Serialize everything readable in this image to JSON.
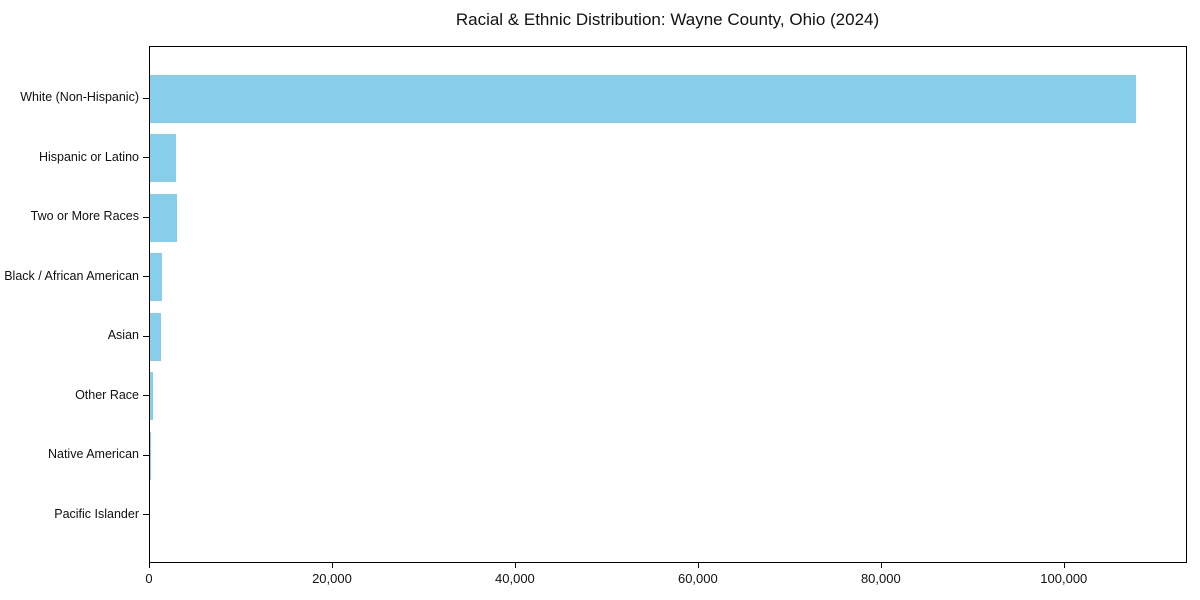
{
  "chart_data": {
    "type": "bar",
    "orientation": "horizontal",
    "title": "Racial & Ethnic Distribution: Wayne County, Ohio (2024)",
    "categories": [
      "White (Non-Hispanic)",
      "Hispanic or Latino",
      "Two or More Races",
      "Black / African American",
      "Asian",
      "Other Race",
      "Native American",
      "Pacific Islander"
    ],
    "values": [
      107800,
      2850,
      2950,
      1300,
      1200,
      350,
      120,
      40
    ],
    "xlabel": "",
    "ylabel": "",
    "xlim": [
      0,
      113250
    ],
    "x_ticks": [
      0,
      20000,
      40000,
      60000,
      80000,
      100000
    ],
    "x_tick_labels": [
      "0",
      "20,000",
      "40,000",
      "60,000",
      "80,000",
      "100,000"
    ],
    "bar_color": "#87CEEB",
    "axis_color": "#000000",
    "text_color": "#111111",
    "background": "#ffffff",
    "grid": false,
    "legend_position": "none"
  }
}
